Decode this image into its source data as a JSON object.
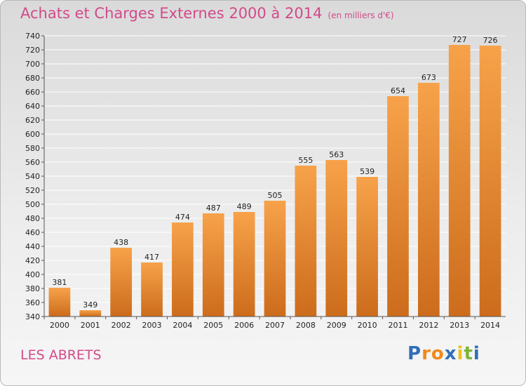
{
  "title": "Achats et Charges Externes 2000 à 2014",
  "unit": "(en milliers d'€)",
  "place": "LES ABRETS",
  "logo": {
    "letters": [
      "P",
      "r",
      "o",
      "x",
      "i",
      "t",
      "i"
    ],
    "colors": [
      "#2f6fb7",
      "#f08a1c",
      "#f08a1c",
      "#2f6fb7",
      "#e8c21e",
      "#7db43a",
      "#2f6fb7"
    ]
  },
  "colors": {
    "bar_top": "#f7a24a",
    "bar_bottom": "#cc6c1c",
    "title": "#d24a8a",
    "grid": "#ffffff"
  },
  "chart_data": {
    "type": "bar",
    "categories": [
      "2000",
      "2001",
      "2002",
      "2003",
      "2004",
      "2005",
      "2006",
      "2007",
      "2008",
      "2009",
      "2010",
      "2011",
      "2012",
      "2013",
      "2014"
    ],
    "values": [
      381,
      349,
      438,
      417,
      474,
      487,
      489,
      505,
      555,
      563,
      539,
      654,
      673,
      727,
      726
    ],
    "ylim": [
      340,
      740
    ],
    "yticks": [
      340,
      360,
      380,
      400,
      420,
      440,
      460,
      480,
      500,
      520,
      540,
      560,
      580,
      600,
      620,
      640,
      660,
      680,
      700,
      720,
      740
    ],
    "grid": true,
    "legend": "none"
  }
}
